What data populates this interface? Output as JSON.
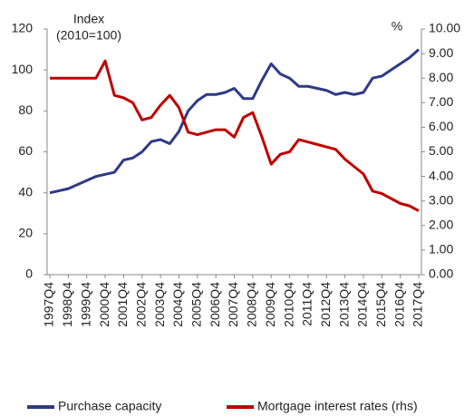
{
  "chart_data": {
    "type": "line",
    "ylabel": [
      "Index",
      "(2010=100)"
    ],
    "y2label": "%",
    "categories": [
      "1997Q4",
      null,
      "1998Q4",
      null,
      "1999Q4",
      null,
      "2000Q4",
      null,
      "2001Q4",
      null,
      "2002Q4",
      null,
      "2003Q4",
      null,
      "2004Q4",
      null,
      "2005Q4",
      null,
      "2006Q4",
      null,
      "2007Q4",
      null,
      "2008Q4",
      null,
      "2009Q4",
      null,
      "2010Q4",
      null,
      "2011Q4",
      null,
      "2012Q4",
      null,
      "2013Q4",
      null,
      "2014Q4",
      null,
      "2015Q4",
      null,
      "2016Q4",
      null,
      "2017Q4"
    ],
    "series": [
      {
        "name": "Purchase capacity",
        "color": "#2e3a87",
        "values": [
          40,
          41,
          42,
          44,
          46,
          48,
          49,
          50,
          56,
          57,
          60,
          65,
          66,
          64,
          70,
          80,
          85,
          88,
          88,
          89,
          91,
          86,
          86,
          95,
          103,
          98,
          96,
          92,
          92,
          91,
          90,
          88,
          89,
          88,
          89,
          96,
          97,
          100,
          103,
          106,
          110
        ]
      },
      {
        "name": "Mortgage interest rates (rhs)",
        "color": "#c00000",
        "axis": "y2",
        "values": [
          8.0,
          8.0,
          8.0,
          8.0,
          8.0,
          8.0,
          8.7,
          7.3,
          7.2,
          7.0,
          6.3,
          6.4,
          6.9,
          7.3,
          6.8,
          5.8,
          5.7,
          5.8,
          5.9,
          5.9,
          5.6,
          6.4,
          6.6,
          5.6,
          4.5,
          4.9,
          5.0,
          5.5,
          5.4,
          5.3,
          5.2,
          5.1,
          4.7,
          4.4,
          4.1,
          3.4,
          3.3,
          3.1,
          2.9,
          2.8,
          2.6
        ]
      }
    ],
    "ylim": [
      0,
      120
    ],
    "yticks": [
      0,
      20,
      40,
      60,
      80,
      100,
      120
    ],
    "y2lim": [
      0,
      10
    ],
    "y2ticks": [
      {
        "value": 0,
        "label": "0.00"
      },
      {
        "value": 1,
        "label": "1.00"
      },
      {
        "value": 2,
        "label": "2.00"
      },
      {
        "value": 3,
        "label": "3.00"
      },
      {
        "value": 4,
        "label": "4.00"
      },
      {
        "value": 5,
        "label": "5.00"
      },
      {
        "value": 6,
        "label": "6.00"
      },
      {
        "value": 7,
        "label": "7.00"
      },
      {
        "value": 8,
        "label": "8.00"
      },
      {
        "value": 9,
        "label": "9.00"
      },
      {
        "value": 10,
        "label": "10.00"
      }
    ],
    "legend": "bottom"
  }
}
